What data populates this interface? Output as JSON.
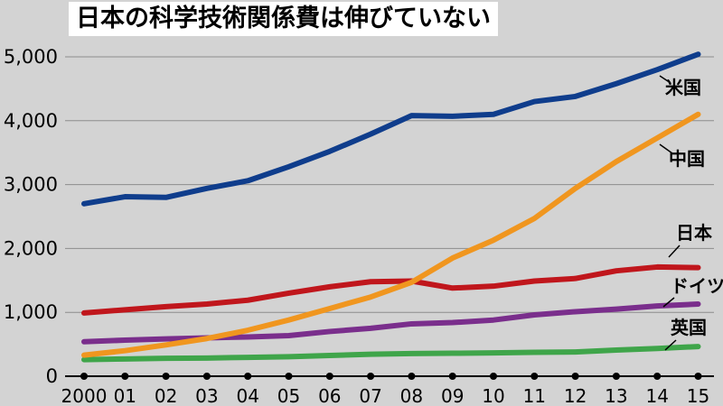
{
  "chart_data": {
    "type": "line",
    "title": "日本の科学技術関係費は伸びていない",
    "x": [
      "2000",
      "01",
      "02",
      "03",
      "04",
      "05",
      "06",
      "07",
      "08",
      "09",
      "10",
      "11",
      "12",
      "13",
      "14",
      "15"
    ],
    "ylim": [
      0,
      5000
    ],
    "yticks": [
      0,
      1000,
      2000,
      3000,
      4000,
      5000
    ],
    "ytick_labels": [
      "0",
      "1,000",
      "2,000",
      "3,000",
      "4,000",
      "5,000"
    ],
    "grid": true,
    "series": [
      {
        "name": "米国",
        "color": "#0f3d8c",
        "values": [
          2700,
          2810,
          2800,
          2940,
          3060,
          3280,
          3520,
          3790,
          4080,
          4070,
          4100,
          4300,
          4380,
          4580,
          4800,
          5040
        ]
      },
      {
        "name": "中国",
        "color": "#f0961f",
        "values": [
          330,
          400,
          490,
          590,
          720,
          880,
          1060,
          1240,
          1470,
          1850,
          2130,
          2470,
          2940,
          3360,
          3730,
          4100
        ]
      },
      {
        "name": "日本",
        "color": "#c0161c",
        "values": [
          990,
          1040,
          1090,
          1130,
          1190,
          1300,
          1400,
          1480,
          1490,
          1380,
          1410,
          1490,
          1530,
          1650,
          1710,
          1700
        ]
      },
      {
        "name": "ドイツ",
        "color": "#7a2e8c",
        "values": [
          540,
          565,
          585,
          600,
          615,
          635,
          700,
          750,
          820,
          840,
          880,
          960,
          1010,
          1050,
          1100,
          1130
        ]
      },
      {
        "name": "英国",
        "color": "#3fa54a",
        "values": [
          260,
          270,
          280,
          285,
          295,
          305,
          325,
          345,
          355,
          360,
          365,
          375,
          380,
          410,
          435,
          465
        ]
      }
    ]
  }
}
